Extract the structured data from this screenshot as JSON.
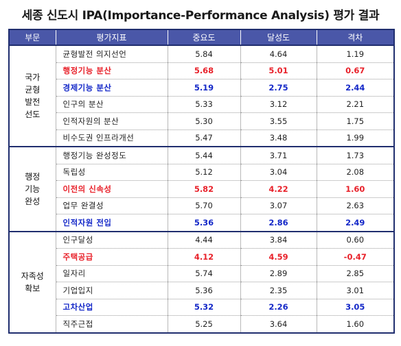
{
  "title": "세종 신도시 IPA(Importance-Performance Analysis) 평가 결과",
  "headers": [
    "부문",
    "평가지표",
    "중요도",
    "달성도",
    "격차"
  ],
  "groups": [
    {
      "category": "국가\n균형\n발전\n선도",
      "rows": [
        {
          "item": "균형발전 의지선언",
          "importance": "5.84",
          "performance": "4.64",
          "gap": "1.19",
          "highlight": "none"
        },
        {
          "item": "행정기능 분산",
          "importance": "5.68",
          "performance": "5.01",
          "gap": "0.67",
          "highlight": "red"
        },
        {
          "item": "경제기능 분산",
          "importance": "5.19",
          "performance": "2.75",
          "gap": "2.44",
          "highlight": "blue"
        },
        {
          "item": "인구의 분산",
          "importance": "5.33",
          "performance": "3.12",
          "gap": "2.21",
          "highlight": "none"
        },
        {
          "item": "인적자원의 분산",
          "importance": "5.30",
          "performance": "3.55",
          "gap": "1.75",
          "highlight": "none"
        },
        {
          "item": "비수도권 인프라개선",
          "importance": "5.47",
          "performance": "3.48",
          "gap": "1.99",
          "highlight": "none"
        }
      ]
    },
    {
      "category": "행정\n기능\n완성",
      "rows": [
        {
          "item": "행정기능 완성정도",
          "importance": "5.44",
          "performance": "3.71",
          "gap": "1.73",
          "highlight": "none"
        },
        {
          "item": "독립성",
          "importance": "5.12",
          "performance": "3.04",
          "gap": "2.08",
          "highlight": "none"
        },
        {
          "item": "이전의 신속성",
          "importance": "5.82",
          "performance": "4.22",
          "gap": "1.60",
          "highlight": "red"
        },
        {
          "item": "업무 완결성",
          "importance": "5.70",
          "performance": "3.07",
          "gap": "2.63",
          "highlight": "none"
        },
        {
          "item": "인적자원 전입",
          "importance": "5.36",
          "performance": "2.86",
          "gap": "2.49",
          "highlight": "blue"
        }
      ]
    },
    {
      "category": "자족성\n확보",
      "rows": [
        {
          "item": "인구달성",
          "importance": "4.44",
          "performance": "3.84",
          "gap": "0.60",
          "highlight": "none"
        },
        {
          "item": "주택공급",
          "importance": "4.12",
          "performance": "4.59",
          "gap": "-0.47",
          "highlight": "red"
        },
        {
          "item": "일자리",
          "importance": "5.74",
          "performance": "2.89",
          "gap": "2.85",
          "highlight": "none"
        },
        {
          "item": "기업입지",
          "importance": "5.36",
          "performance": "2.35",
          "gap": "3.01",
          "highlight": "none"
        },
        {
          "item": "고차산업",
          "importance": "5.32",
          "performance": "2.26",
          "gap": "3.05",
          "highlight": "blue"
        },
        {
          "item": "직주근접",
          "importance": "5.25",
          "performance": "3.64",
          "gap": "1.60",
          "highlight": "none"
        }
      ]
    }
  ],
  "colors": {
    "header_bg": "#4a57a8",
    "border": "#1f2d6e",
    "highlight_red": "#e8212a",
    "highlight_blue": "#1428c8"
  }
}
